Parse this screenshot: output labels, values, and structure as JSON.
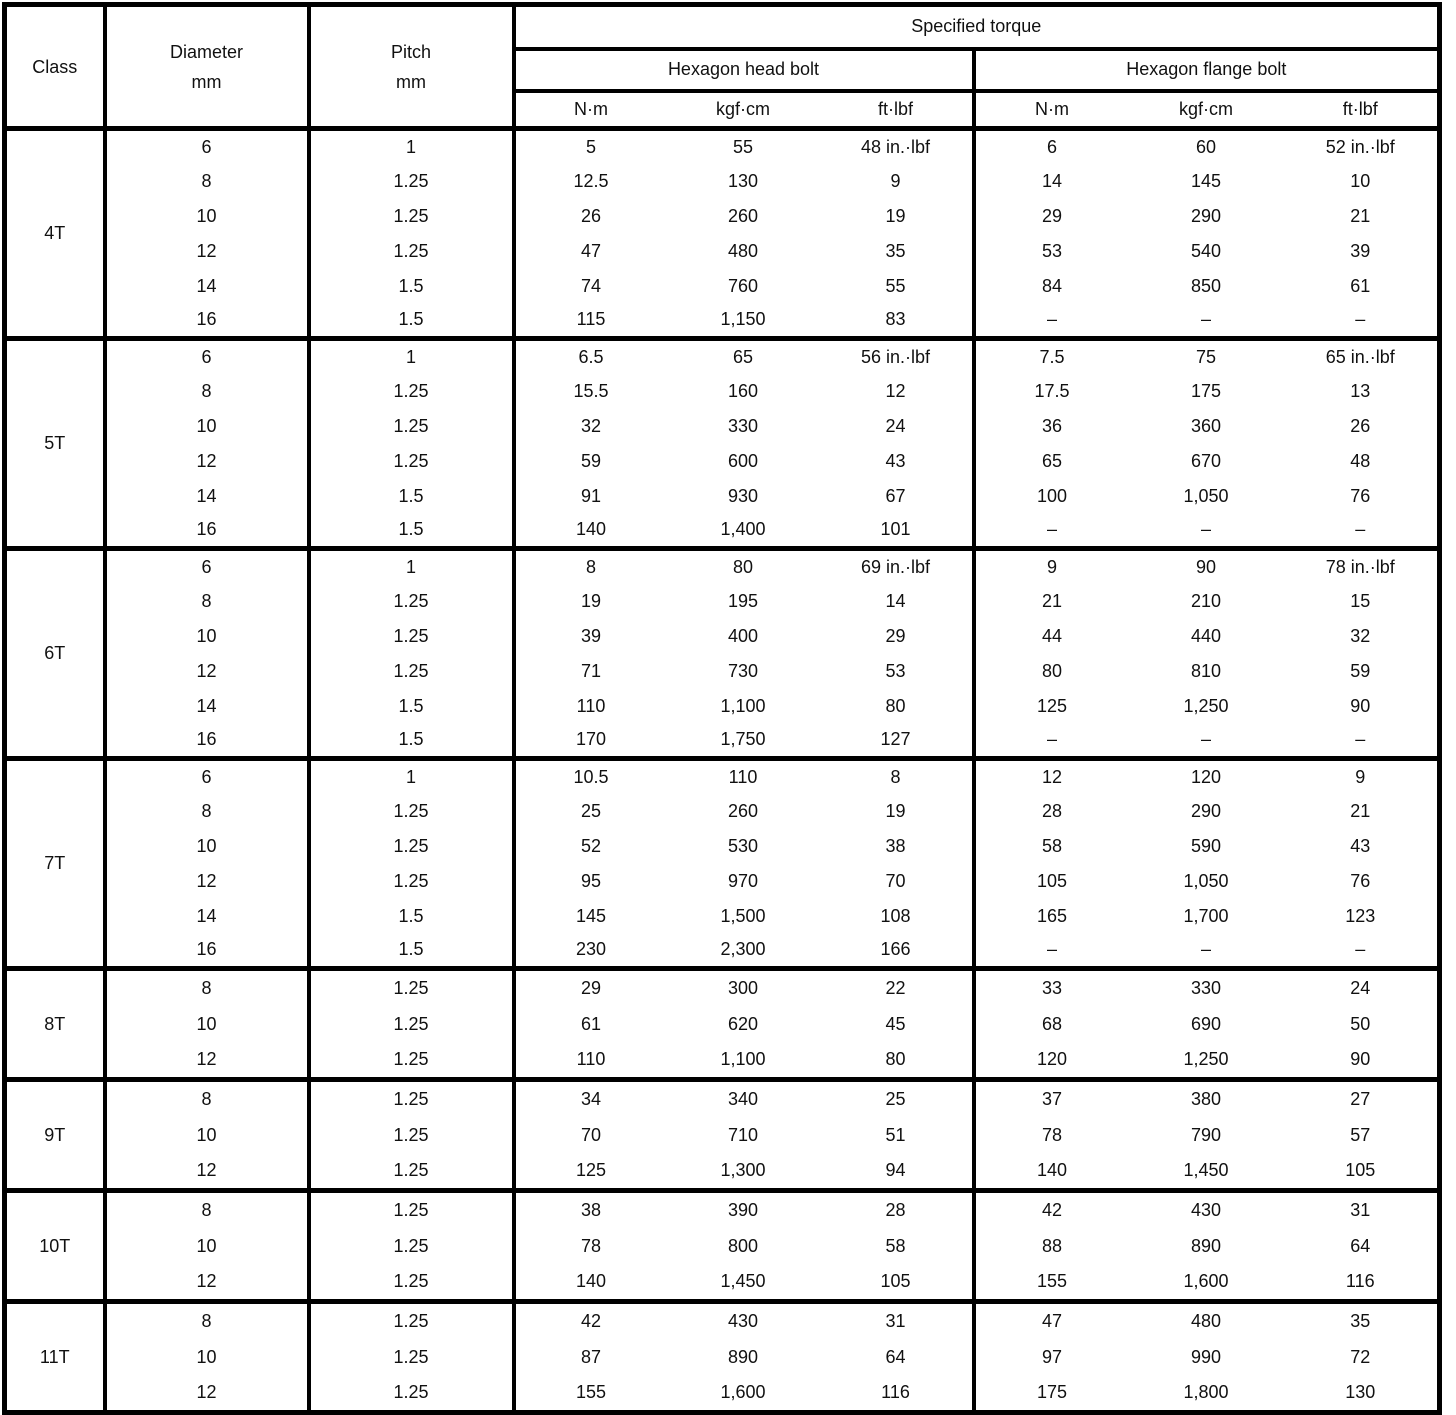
{
  "colors": {
    "paper": "#ffffff",
    "ink": "#111111"
  },
  "table": {
    "header": {
      "class_label": "Class",
      "diameter_label": "Diameter",
      "diameter_unit": "mm",
      "pitch_label": "Pitch",
      "pitch_unit": "mm",
      "specified_torque_label": "Specified torque",
      "hexagon_head_bolt_label": "Hexagon head bolt",
      "hexagon_flange_bolt_label": "Hexagon flange bolt",
      "unit_labels": [
        "N·m",
        "kgf·cm",
        "ft·lbf"
      ]
    },
    "groups": [
      {
        "class": "4T",
        "rows": [
          {
            "diameter": "6",
            "pitch": "1",
            "head": [
              "5",
              "55",
              "48 in.·lbf"
            ],
            "flange": [
              "6",
              "60",
              "52 in.·lbf"
            ]
          },
          {
            "diameter": "8",
            "pitch": "1.25",
            "head": [
              "12.5",
              "130",
              "9"
            ],
            "flange": [
              "14",
              "145",
              "10"
            ]
          },
          {
            "diameter": "10",
            "pitch": "1.25",
            "head": [
              "26",
              "260",
              "19"
            ],
            "flange": [
              "29",
              "290",
              "21"
            ]
          },
          {
            "diameter": "12",
            "pitch": "1.25",
            "head": [
              "47",
              "480",
              "35"
            ],
            "flange": [
              "53",
              "540",
              "39"
            ]
          },
          {
            "diameter": "14",
            "pitch": "1.5",
            "head": [
              "74",
              "760",
              "55"
            ],
            "flange": [
              "84",
              "850",
              "61"
            ]
          },
          {
            "diameter": "16",
            "pitch": "1.5",
            "head": [
              "115",
              "1,150",
              "83"
            ],
            "flange": [
              "–",
              "–",
              "–"
            ]
          }
        ]
      },
      {
        "class": "5T",
        "rows": [
          {
            "diameter": "6",
            "pitch": "1",
            "head": [
              "6.5",
              "65",
              "56 in.·lbf"
            ],
            "flange": [
              "7.5",
              "75",
              "65 in.·lbf"
            ]
          },
          {
            "diameter": "8",
            "pitch": "1.25",
            "head": [
              "15.5",
              "160",
              "12"
            ],
            "flange": [
              "17.5",
              "175",
              "13"
            ]
          },
          {
            "diameter": "10",
            "pitch": "1.25",
            "head": [
              "32",
              "330",
              "24"
            ],
            "flange": [
              "36",
              "360",
              "26"
            ]
          },
          {
            "diameter": "12",
            "pitch": "1.25",
            "head": [
              "59",
              "600",
              "43"
            ],
            "flange": [
              "65",
              "670",
              "48"
            ]
          },
          {
            "diameter": "14",
            "pitch": "1.5",
            "head": [
              "91",
              "930",
              "67"
            ],
            "flange": [
              "100",
              "1,050",
              "76"
            ]
          },
          {
            "diameter": "16",
            "pitch": "1.5",
            "head": [
              "140",
              "1,400",
              "101"
            ],
            "flange": [
              "–",
              "–",
              "–"
            ]
          }
        ]
      },
      {
        "class": "6T",
        "rows": [
          {
            "diameter": "6",
            "pitch": "1",
            "head": [
              "8",
              "80",
              "69 in.·lbf"
            ],
            "flange": [
              "9",
              "90",
              "78 in.·lbf"
            ]
          },
          {
            "diameter": "8",
            "pitch": "1.25",
            "head": [
              "19",
              "195",
              "14"
            ],
            "flange": [
              "21",
              "210",
              "15"
            ]
          },
          {
            "diameter": "10",
            "pitch": "1.25",
            "head": [
              "39",
              "400",
              "29"
            ],
            "flange": [
              "44",
              "440",
              "32"
            ]
          },
          {
            "diameter": "12",
            "pitch": "1.25",
            "head": [
              "71",
              "730",
              "53"
            ],
            "flange": [
              "80",
              "810",
              "59"
            ]
          },
          {
            "diameter": "14",
            "pitch": "1.5",
            "head": [
              "110",
              "1,100",
              "80"
            ],
            "flange": [
              "125",
              "1,250",
              "90"
            ]
          },
          {
            "diameter": "16",
            "pitch": "1.5",
            "head": [
              "170",
              "1,750",
              "127"
            ],
            "flange": [
              "–",
              "–",
              "–"
            ]
          }
        ]
      },
      {
        "class": "7T",
        "rows": [
          {
            "diameter": "6",
            "pitch": "1",
            "head": [
              "10.5",
              "110",
              "8"
            ],
            "flange": [
              "12",
              "120",
              "9"
            ]
          },
          {
            "diameter": "8",
            "pitch": "1.25",
            "head": [
              "25",
              "260",
              "19"
            ],
            "flange": [
              "28",
              "290",
              "21"
            ]
          },
          {
            "diameter": "10",
            "pitch": "1.25",
            "head": [
              "52",
              "530",
              "38"
            ],
            "flange": [
              "58",
              "590",
              "43"
            ]
          },
          {
            "diameter": "12",
            "pitch": "1.25",
            "head": [
              "95",
              "970",
              "70"
            ],
            "flange": [
              "105",
              "1,050",
              "76"
            ]
          },
          {
            "diameter": "14",
            "pitch": "1.5",
            "head": [
              "145",
              "1,500",
              "108"
            ],
            "flange": [
              "165",
              "1,700",
              "123"
            ]
          },
          {
            "diameter": "16",
            "pitch": "1.5",
            "head": [
              "230",
              "2,300",
              "166"
            ],
            "flange": [
              "–",
              "–",
              "–"
            ]
          }
        ]
      },
      {
        "class": "8T",
        "rows": [
          {
            "diameter": "8",
            "pitch": "1.25",
            "head": [
              "29",
              "300",
              "22"
            ],
            "flange": [
              "33",
              "330",
              "24"
            ]
          },
          {
            "diameter": "10",
            "pitch": "1.25",
            "head": [
              "61",
              "620",
              "45"
            ],
            "flange": [
              "68",
              "690",
              "50"
            ]
          },
          {
            "diameter": "12",
            "pitch": "1.25",
            "head": [
              "110",
              "1,100",
              "80"
            ],
            "flange": [
              "120",
              "1,250",
              "90"
            ]
          }
        ]
      },
      {
        "class": "9T",
        "rows": [
          {
            "diameter": "8",
            "pitch": "1.25",
            "head": [
              "34",
              "340",
              "25"
            ],
            "flange": [
              "37",
              "380",
              "27"
            ]
          },
          {
            "diameter": "10",
            "pitch": "1.25",
            "head": [
              "70",
              "710",
              "51"
            ],
            "flange": [
              "78",
              "790",
              "57"
            ]
          },
          {
            "diameter": "12",
            "pitch": "1.25",
            "head": [
              "125",
              "1,300",
              "94"
            ],
            "flange": [
              "140",
              "1,450",
              "105"
            ]
          }
        ]
      },
      {
        "class": "10T",
        "rows": [
          {
            "diameter": "8",
            "pitch": "1.25",
            "head": [
              "38",
              "390",
              "28"
            ],
            "flange": [
              "42",
              "430",
              "31"
            ]
          },
          {
            "diameter": "10",
            "pitch": "1.25",
            "head": [
              "78",
              "800",
              "58"
            ],
            "flange": [
              "88",
              "890",
              "64"
            ]
          },
          {
            "diameter": "12",
            "pitch": "1.25",
            "head": [
              "140",
              "1,450",
              "105"
            ],
            "flange": [
              "155",
              "1,600",
              "116"
            ]
          }
        ]
      },
      {
        "class": "11T",
        "rows": [
          {
            "diameter": "8",
            "pitch": "1.25",
            "head": [
              "42",
              "430",
              "31"
            ],
            "flange": [
              "47",
              "480",
              "35"
            ]
          },
          {
            "diameter": "10",
            "pitch": "1.25",
            "head": [
              "87",
              "890",
              "64"
            ],
            "flange": [
              "97",
              "990",
              "72"
            ]
          },
          {
            "diameter": "12",
            "pitch": "1.25",
            "head": [
              "155",
              "1,600",
              "116"
            ],
            "flange": [
              "175",
              "1,800",
              "130"
            ]
          }
        ]
      }
    ]
  }
}
